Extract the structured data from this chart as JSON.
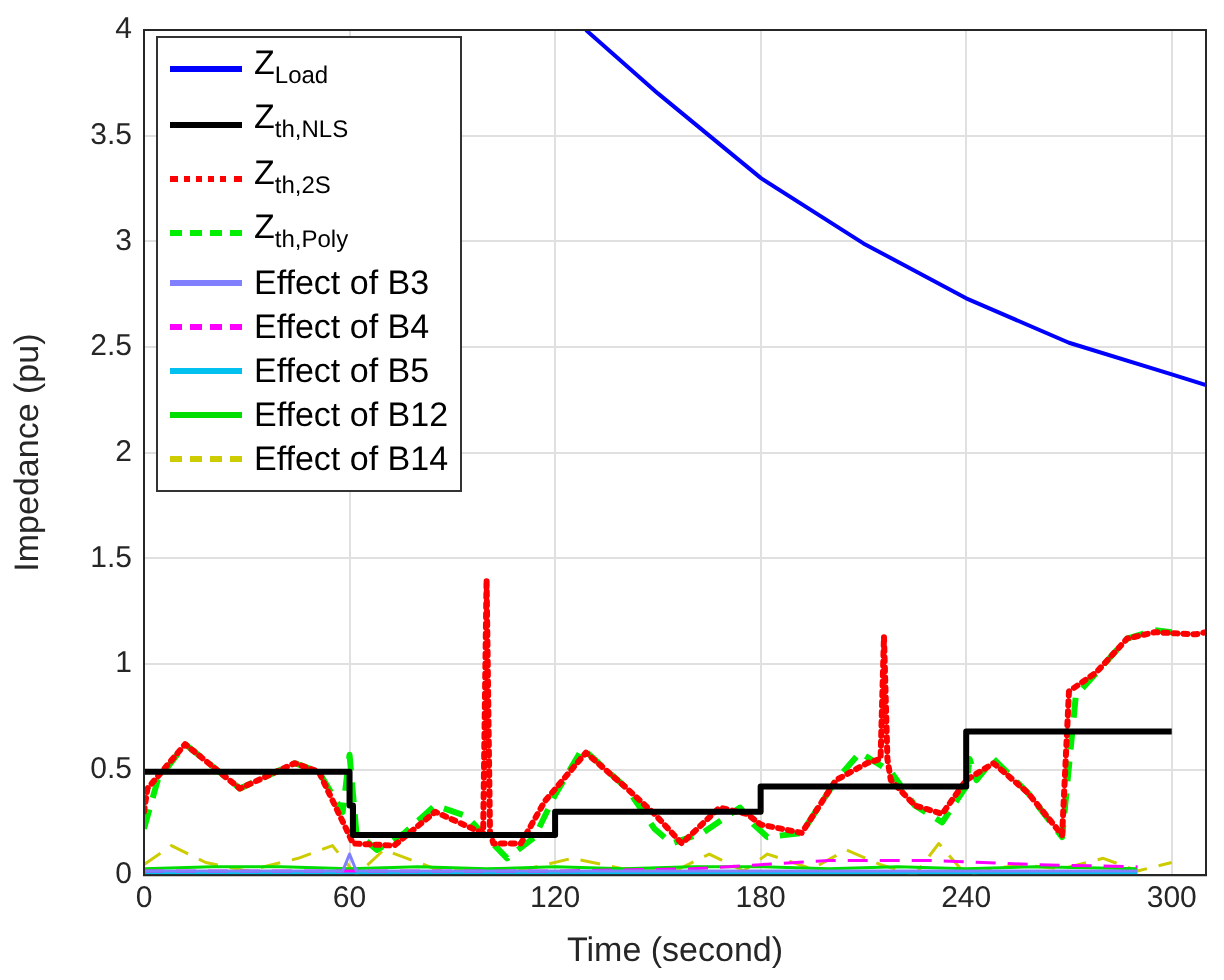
{
  "chart_data": {
    "type": "line",
    "xlabel": "Time (second)",
    "ylabel": "Impedance (pu)",
    "xlim": [
      0,
      310
    ],
    "ylim": [
      0,
      4
    ],
    "xticks": [
      0,
      60,
      120,
      180,
      240,
      300
    ],
    "yticks": [
      0,
      0.5,
      1,
      1.5,
      2,
      2.5,
      3,
      3.5,
      4
    ],
    "grid": true,
    "legend": "top left",
    "marker": "none",
    "series": [
      {
        "name": "Z$_{Load}$",
        "color": "#0000ff",
        "line_style": "solid",
        "x": [
          129,
          150,
          180,
          210,
          240,
          270,
          300,
          310
        ],
        "values": [
          4,
          3.7,
          3.3,
          2.99,
          2.73,
          2.52,
          2.37,
          2.32
        ]
      },
      {
        "name": "Z$_{th,NLS}$",
        "type": "step",
        "color": "#000000",
        "line_style": "solid",
        "x": [
          0,
          60,
          61,
          120,
          180,
          240,
          300
        ],
        "values": [
          0.49,
          0.33,
          0.19,
          0.3,
          0.42,
          0.68,
          0.68
        ]
      },
      {
        "name": "Z$_{th,2S}$",
        "color": "#ff0000",
        "line_style": "dotted",
        "x": [
          0,
          1,
          12,
          28,
          44,
          51,
          59,
          61,
          73,
          85,
          96,
          99,
          100,
          101,
          102,
          110,
          117,
          129,
          141,
          149,
          157,
          168,
          176,
          180,
          192,
          202,
          211,
          215,
          216,
          217,
          218,
          225,
          233,
          240,
          248,
          258,
          268,
          270,
          278,
          287,
          295,
          307,
          310
        ],
        "values": [
          0.3,
          0.41,
          0.62,
          0.41,
          0.53,
          0.49,
          0.22,
          0.15,
          0.14,
          0.3,
          0.22,
          0.2,
          1.4,
          0.2,
          0.15,
          0.15,
          0.35,
          0.58,
          0.41,
          0.29,
          0.15,
          0.32,
          0.29,
          0.24,
          0.2,
          0.45,
          0.53,
          0.55,
          1.13,
          0.55,
          0.45,
          0.33,
          0.29,
          0.45,
          0.53,
          0.39,
          0.19,
          0.87,
          0.96,
          1.12,
          1.15,
          1.14,
          1.15
        ]
      },
      {
        "name": "Z$_{th,Poly}$",
        "color": "#00ee00",
        "line_style": "dashed",
        "x": [
          0,
          4,
          12,
          28,
          44,
          51,
          58,
          60,
          62,
          68,
          76,
          85,
          94,
          106,
          114,
          120,
          128,
          141,
          149,
          154,
          163,
          174,
          178,
          182,
          192,
          202,
          209,
          218,
          225,
          233,
          240,
          241,
          243,
          248,
          258,
          268,
          272,
          287,
          295,
          300
        ],
        "values": [
          0.22,
          0.45,
          0.62,
          0.41,
          0.53,
          0.49,
          0.3,
          0.57,
          0.2,
          0.12,
          0.2,
          0.33,
          0.28,
          0.08,
          0.18,
          0.38,
          0.6,
          0.41,
          0.22,
          0.15,
          0.2,
          0.32,
          0.24,
          0.18,
          0.2,
          0.45,
          0.58,
          0.49,
          0.33,
          0.25,
          0.42,
          0.55,
          0.45,
          0.55,
          0.39,
          0.18,
          0.85,
          1.12,
          1.16,
          1.15
        ]
      },
      {
        "name": "Effect of B3",
        "color": "#8080ff",
        "line_style": "solid",
        "x": [
          0,
          30,
          58,
          60,
          62,
          90,
          120,
          150,
          180,
          210,
          240,
          270,
          290
        ],
        "values": [
          0.02,
          0.02,
          0.02,
          0.1,
          0.02,
          0.02,
          0.02,
          0.02,
          0.02,
          0.02,
          0.02,
          0.02,
          0.02
        ]
      },
      {
        "name": "Effect of B4",
        "color": "#ff00ff",
        "line_style": "dashed",
        "x": [
          0,
          60,
          120,
          160,
          200,
          230,
          260,
          290
        ],
        "values": [
          0.02,
          0.02,
          0.02,
          0.03,
          0.07,
          0.07,
          0.05,
          0.04
        ]
      },
      {
        "name": "Effect of B5",
        "color": "#00c0f0",
        "line_style": "solid",
        "x": [
          0,
          100,
          200,
          290
        ],
        "values": [
          0.01,
          0.01,
          0.01,
          0.01
        ]
      },
      {
        "name": "Effect of B12",
        "color": "#00dd00",
        "line_style": "solid",
        "x": [
          0,
          20,
          40,
          60,
          80,
          100,
          120,
          140,
          160,
          180,
          200,
          220,
          240,
          260,
          290
        ],
        "values": [
          0.03,
          0.04,
          0.04,
          0.03,
          0.04,
          0.03,
          0.04,
          0.03,
          0.04,
          0.04,
          0.03,
          0.04,
          0.03,
          0.04,
          0.03
        ]
      },
      {
        "name": "Effect of B14",
        "color": "#cccc00",
        "line_style": "dashed",
        "x": [
          0,
          8,
          18,
          30,
          45,
          55,
          62,
          70,
          85,
          100,
          112,
          125,
          140,
          155,
          165,
          175,
          182,
          195,
          205,
          215,
          225,
          232,
          240,
          255,
          268,
          280,
          290,
          300
        ],
        "values": [
          0.05,
          0.14,
          0.06,
          0.02,
          0.08,
          0.14,
          0.0,
          0.12,
          0.03,
          0.02,
          0.03,
          0.08,
          0.03,
          0.02,
          0.1,
          0.02,
          0.1,
          0.03,
          0.12,
          0.05,
          0.0,
          0.15,
          0.0,
          0.05,
          0.03,
          0.08,
          0.02,
          0.06
        ]
      }
    ]
  }
}
